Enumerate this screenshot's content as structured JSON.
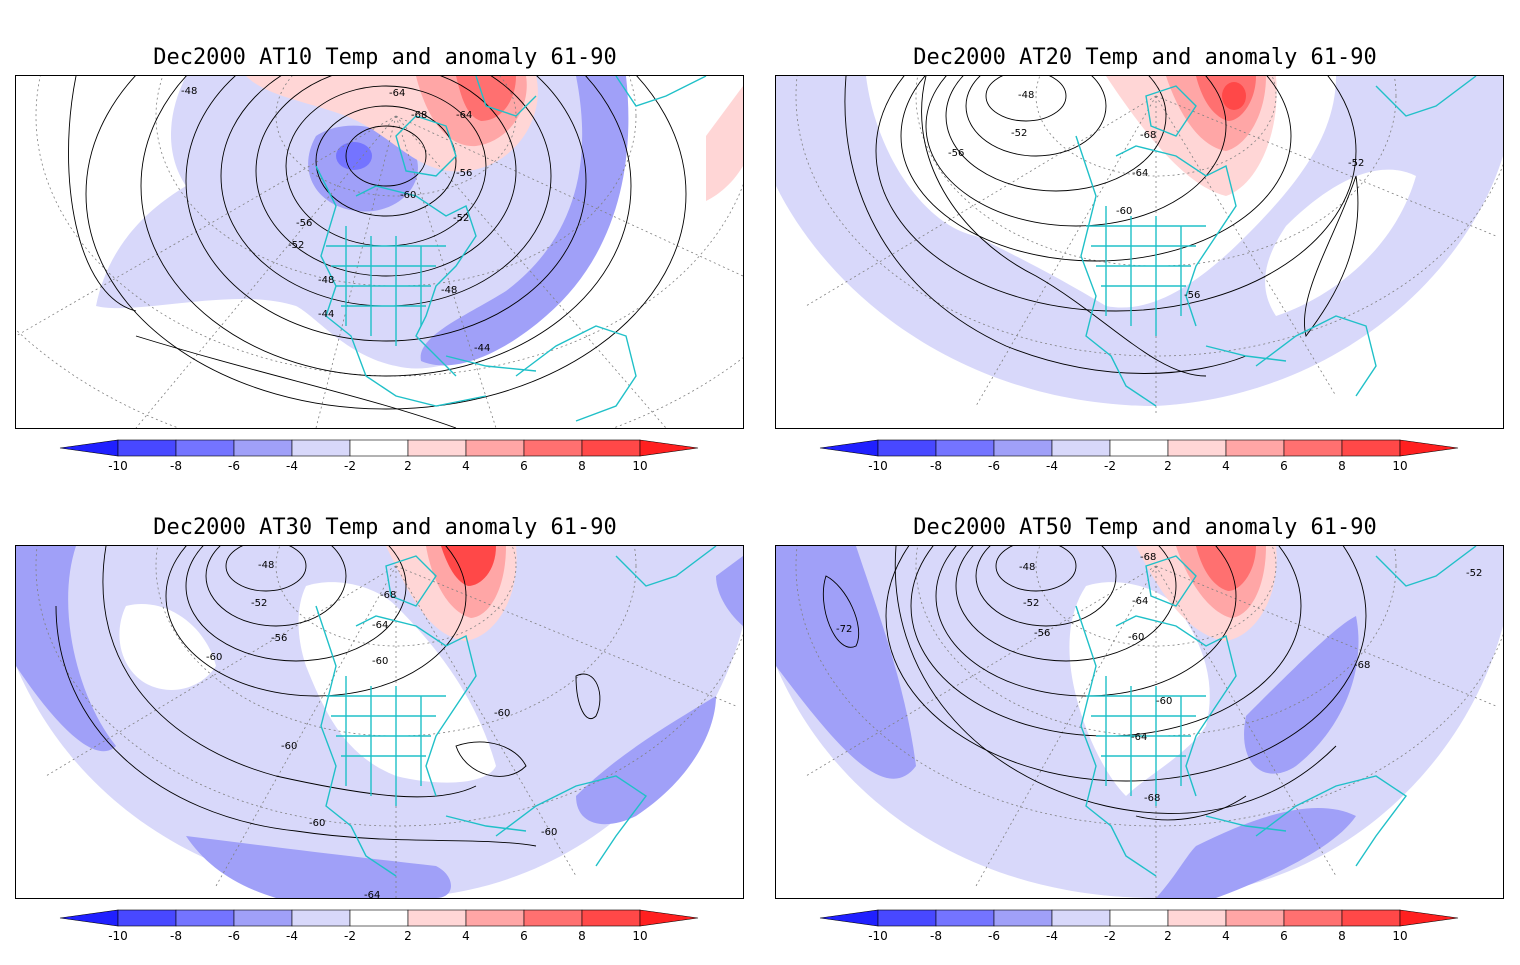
{
  "panels": [
    {
      "title": "Dec2000 AT10 Temp and anomaly 61-90",
      "projection": "polar-rect",
      "contour_labels": [
        "-48",
        "-64",
        "-68",
        "-64",
        "-56",
        "-60",
        "-56",
        "-52",
        "-52",
        "-48",
        "-48",
        "-44",
        "-44"
      ],
      "anomaly_blobs": [
        {
          "level": -4,
          "desc": "broad low anomaly"
        },
        {
          "level": -6,
          "desc": "Atlantic band"
        },
        {
          "level": -8,
          "desc": "Hudson core"
        },
        {
          "level": 4,
          "desc": "Greenland/Arctic"
        },
        {
          "level": 6,
          "desc": "Arctic core"
        }
      ]
    },
    {
      "title": "Dec2000 AT20 Temp and anomaly 61-90",
      "projection": "polar-fan",
      "contour_labels": [
        "-48",
        "-52",
        "-56",
        "-68",
        "-64",
        "-60",
        "-56",
        "-52"
      ],
      "anomaly_blobs": [
        {
          "level": -4,
          "desc": "broad low anomaly"
        },
        {
          "level": 4,
          "desc": "Greenland"
        },
        {
          "level": 6,
          "desc": "Greenland core"
        },
        {
          "level": 8,
          "desc": "Greenland max"
        }
      ]
    },
    {
      "title": "Dec2000 AT30 Temp and anomaly 61-90",
      "projection": "polar-fan",
      "contour_labels": [
        "-48",
        "-52",
        "-56",
        "-60",
        "-68",
        "-64",
        "-60",
        "-60",
        "-60",
        "-60",
        "-60",
        "-64"
      ],
      "anomaly_blobs": [
        {
          "level": -4,
          "desc": "broad low anomaly"
        },
        {
          "level": -6,
          "desc": "southern band"
        },
        {
          "level": 4,
          "desc": "Greenland"
        },
        {
          "level": 8,
          "desc": "Greenland core"
        }
      ]
    },
    {
      "title": "Dec2000 AT50 Temp and anomaly 61-90",
      "projection": "polar-fan",
      "contour_labels": [
        "-68",
        "-48",
        "-52",
        "-56",
        "-64",
        "-60",
        "-72",
        "-68",
        "-60",
        "-64",
        "-68",
        "-52"
      ],
      "anomaly_blobs": [
        {
          "level": -4,
          "desc": "broad low anomaly"
        },
        {
          "level": -6,
          "desc": "Pacific/Atlantic"
        },
        {
          "level": 4,
          "desc": "Greenland"
        },
        {
          "level": 6,
          "desc": "Greenland core"
        }
      ]
    }
  ],
  "colorbar": {
    "ticks": [
      "-10",
      "-8",
      "-6",
      "-4",
      "-2",
      "2",
      "4",
      "6",
      "8",
      "10"
    ],
    "colors": [
      "#2020ff",
      "#4848ff",
      "#7474ff",
      "#a0a0f8",
      "#d8d8fa",
      "#ffffff",
      "#ffd6d6",
      "#ffa6a6",
      "#ff7070",
      "#ff4848",
      "#ff2020"
    ]
  },
  "colors": {
    "coast": "#20c0c8",
    "contour": "#000000",
    "grid": "#808080"
  }
}
